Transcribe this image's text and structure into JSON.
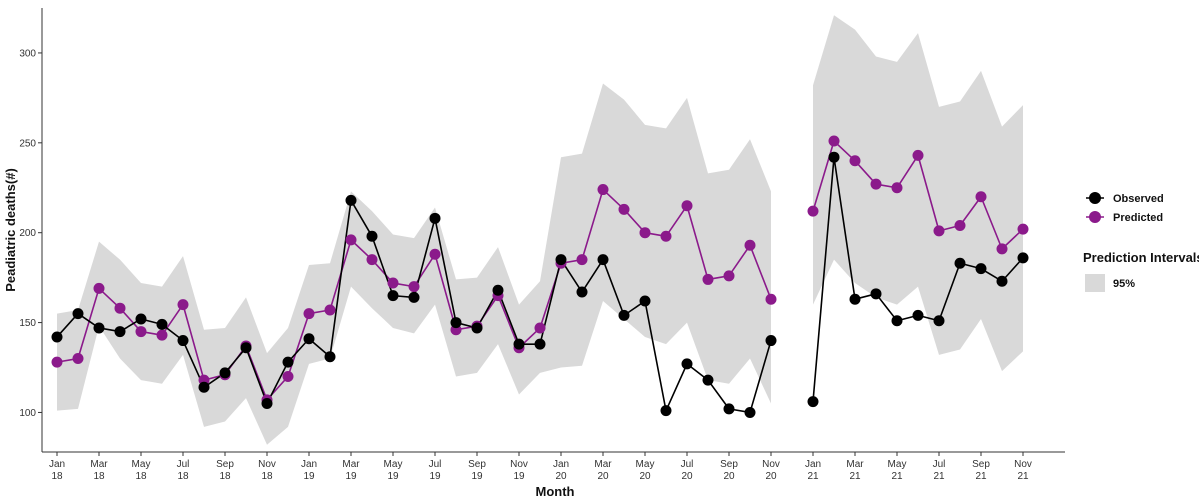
{
  "chart_data": {
    "type": "line",
    "xlabel": "Month",
    "ylabel": "Peadiatric deaths(#)",
    "ylim": [
      78,
      325
    ],
    "y_ticks": [
      100,
      150,
      200,
      250,
      300
    ],
    "x_tick_labels": [
      {
        "month": "Jan",
        "year": "18"
      },
      {
        "month": "Mar",
        "year": "18"
      },
      {
        "month": "May",
        "year": "18"
      },
      {
        "month": "Jul",
        "year": "18"
      },
      {
        "month": "Sep",
        "year": "18"
      },
      {
        "month": "Nov",
        "year": "18"
      },
      {
        "month": "Jan",
        "year": "19"
      },
      {
        "month": "Mar",
        "year": "19"
      },
      {
        "month": "May",
        "year": "19"
      },
      {
        "month": "Jul",
        "year": "19"
      },
      {
        "month": "Sep",
        "year": "19"
      },
      {
        "month": "Nov",
        "year": "19"
      },
      {
        "month": "Jan",
        "year": "20"
      },
      {
        "month": "Mar",
        "year": "20"
      },
      {
        "month": "May",
        "year": "20"
      },
      {
        "month": "Jul",
        "year": "20"
      },
      {
        "month": "Sep",
        "year": "20"
      },
      {
        "month": "Nov",
        "year": "20"
      },
      {
        "month": "Jan",
        "year": "21"
      },
      {
        "month": "Mar",
        "year": "21"
      },
      {
        "month": "May",
        "year": "21"
      },
      {
        "month": "Jul",
        "year": "21"
      },
      {
        "month": "Sep",
        "year": "21"
      },
      {
        "month": "Nov",
        "year": "21"
      }
    ],
    "x": [
      "2018-01",
      "2018-02",
      "2018-03",
      "2018-04",
      "2018-05",
      "2018-06",
      "2018-07",
      "2018-08",
      "2018-09",
      "2018-10",
      "2018-11",
      "2018-12",
      "2019-01",
      "2019-02",
      "2019-03",
      "2019-04",
      "2019-05",
      "2019-06",
      "2019-07",
      "2019-08",
      "2019-09",
      "2019-10",
      "2019-11",
      "2019-12",
      "2020-01",
      "2020-02",
      "2020-03",
      "2020-04",
      "2020-05",
      "2020-06",
      "2020-07",
      "2020-08",
      "2020-09",
      "2020-10",
      "2020-11",
      "2020-12",
      "2021-01",
      "2021-02",
      "2021-03",
      "2021-04",
      "2021-05",
      "2021-06",
      "2021-07",
      "2021-08",
      "2021-09",
      "2021-10",
      "2021-11",
      "2021-12"
    ],
    "series": [
      {
        "name": "Observed",
        "color": "#000000",
        "values": [
          142,
          155,
          147,
          145,
          152,
          149,
          140,
          114,
          122,
          136,
          105,
          128,
          141,
          131,
          218,
          198,
          165,
          164,
          208,
          150,
          147,
          168,
          138,
          138,
          185,
          167,
          185,
          154,
          162,
          101,
          127,
          118,
          102,
          100,
          140,
          null,
          106,
          242,
          163,
          166,
          151,
          154,
          151,
          183,
          180,
          173,
          186,
          null
        ]
      },
      {
        "name": "Predicted",
        "color": "#8b1a8b",
        "values": [
          128,
          130,
          169,
          158,
          145,
          143,
          160,
          118,
          121,
          137,
          107,
          120,
          155,
          157,
          196,
          185,
          172,
          170,
          188,
          146,
          148,
          165,
          136,
          147,
          183,
          185,
          224,
          213,
          200,
          198,
          215,
          174,
          176,
          193,
          163,
          null,
          212,
          251,
          240,
          227,
          225,
          243,
          201,
          204,
          220,
          191,
          202,
          null
        ]
      }
    ],
    "interval": {
      "name": "95%",
      "lower": [
        101,
        102,
        148,
        130,
        118,
        116,
        132,
        92,
        95,
        108,
        82,
        92,
        127,
        130,
        170,
        158,
        147,
        144,
        160,
        120,
        122,
        138,
        110,
        122,
        125,
        126,
        162,
        152,
        142,
        138,
        150,
        118,
        116,
        130,
        105,
        null,
        160,
        185,
        172,
        164,
        160,
        170,
        132,
        135,
        152,
        123,
        134,
        null
      ],
      "upper": [
        155,
        157,
        195,
        185,
        172,
        170,
        187,
        146,
        147,
        164,
        133,
        147,
        182,
        183,
        223,
        212,
        199,
        197,
        214,
        174,
        175,
        192,
        160,
        173,
        242,
        244,
        283,
        274,
        260,
        258,
        275,
        233,
        235,
        252,
        223,
        null,
        282,
        321,
        313,
        298,
        295,
        311,
        270,
        273,
        290,
        259,
        271,
        null
      ]
    },
    "legend": {
      "placement": "right",
      "entries": [
        "Observed",
        "Predicted"
      ],
      "interval_title": "Prediction Intervals",
      "interval_entry": "95%",
      "band_color": "#d9d9d9"
    },
    "grid": false
  }
}
